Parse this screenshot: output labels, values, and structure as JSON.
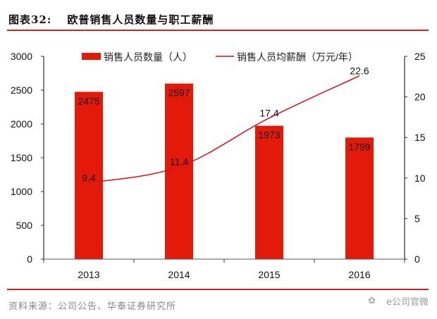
{
  "header": {
    "figure_label": "图表32:",
    "title": "欧普销售人员数量与职工薪酬"
  },
  "footer": {
    "source": "资料来源：公司公告、华泰证券研究所",
    "watermark": "e公司官微"
  },
  "colors": {
    "bar": "#e31a0a",
    "line": "#d0121c",
    "rule": "#c0272d",
    "axis": "#000000"
  },
  "chart_data": {
    "type": "bar",
    "title": "欧普销售人员数量与职工薪酬",
    "categories": [
      "2013",
      "2014",
      "2015",
      "2016"
    ],
    "series": [
      {
        "name": "销售人员数量（人）",
        "type": "bar",
        "axis": "left",
        "values": [
          2475,
          2597,
          1973,
          1799
        ],
        "labels": [
          "2475",
          "2597",
          "1973",
          "1799"
        ]
      },
      {
        "name": "销售人员均薪酬（万元/年）",
        "type": "line",
        "axis": "right",
        "values": [
          9.4,
          11.4,
          17.4,
          22.6
        ],
        "labels": [
          "9.4",
          "11.4",
          "17.4",
          "22.6"
        ]
      }
    ],
    "y_left": {
      "min": 0,
      "max": 3000,
      "ticks": [
        0,
        500,
        1000,
        1500,
        2000,
        2500,
        3000
      ]
    },
    "y_right": {
      "min": 0,
      "max": 25,
      "ticks": [
        0,
        5,
        10,
        15,
        20,
        25
      ]
    },
    "xlabel": "",
    "ylabel": "",
    "grid": false,
    "legend_position": "top-center"
  }
}
